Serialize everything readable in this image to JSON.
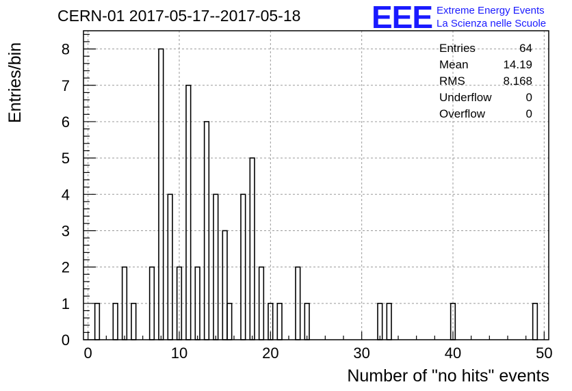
{
  "title": "CERN-01 2017-05-17--2017-05-18",
  "logo": {
    "mark": "EEE",
    "line1": "Extreme Energy Events",
    "line2": "La Scienza nelle Scuole"
  },
  "stats": [
    {
      "label": "Entries",
      "value": "64"
    },
    {
      "label": "Mean",
      "value": "14.19"
    },
    {
      "label": "RMS",
      "value": "8.168"
    },
    {
      "label": "Underflow",
      "value": "0"
    },
    {
      "label": "Overflow",
      "value": "0"
    }
  ],
  "chart_data": {
    "type": "bar",
    "title": "CERN-01 2017-05-17--2017-05-18",
    "xlabel": "Number of \"no hits\" events",
    "ylabel": "Entries/bin",
    "xlim": [
      -0.5,
      50.5
    ],
    "ylim": [
      0,
      8.5
    ],
    "bin_width": 0.5,
    "x_ticks": [
      0,
      10,
      20,
      30,
      40,
      50
    ],
    "y_ticks": [
      0,
      1,
      2,
      3,
      4,
      5,
      6,
      7,
      8
    ],
    "grid": true,
    "bins": [
      {
        "x": 1,
        "y": 1
      },
      {
        "x": 3,
        "y": 1
      },
      {
        "x": 4,
        "y": 2
      },
      {
        "x": 5,
        "y": 1
      },
      {
        "x": 7,
        "y": 2
      },
      {
        "x": 8,
        "y": 8
      },
      {
        "x": 9,
        "y": 4
      },
      {
        "x": 10,
        "y": 2
      },
      {
        "x": 11,
        "y": 7
      },
      {
        "x": 12,
        "y": 2
      },
      {
        "x": 13,
        "y": 6
      },
      {
        "x": 14,
        "y": 4
      },
      {
        "x": 15,
        "y": 3
      },
      {
        "x": 15.5,
        "y": 1
      },
      {
        "x": 17,
        "y": 4
      },
      {
        "x": 18,
        "y": 5
      },
      {
        "x": 19,
        "y": 2
      },
      {
        "x": 20,
        "y": 1
      },
      {
        "x": 21,
        "y": 1
      },
      {
        "x": 23,
        "y": 2
      },
      {
        "x": 24,
        "y": 1
      },
      {
        "x": 32,
        "y": 1
      },
      {
        "x": 33,
        "y": 1
      },
      {
        "x": 40,
        "y": 1
      },
      {
        "x": 49,
        "y": 1
      }
    ]
  }
}
